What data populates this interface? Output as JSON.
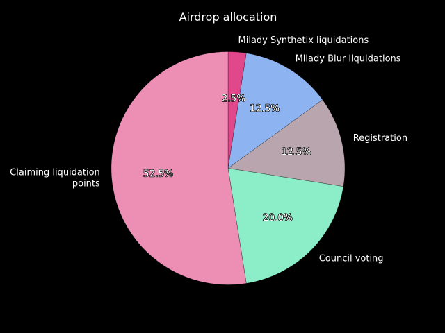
{
  "chart_data": {
    "type": "pie",
    "title": "Airdrop allocation",
    "start_angle_deg": 90,
    "direction": "clockwise",
    "legend": "none",
    "slices": [
      {
        "label": "Milady Synthetix liquidations",
        "value": 2.5,
        "pct_text": "2.5%",
        "color": "#e0488b"
      },
      {
        "label": "Milady Blur liquidations",
        "value": 12.5,
        "pct_text": "12.5%",
        "color": "#8db3f0"
      },
      {
        "label": "Registration",
        "value": 12.5,
        "pct_text": "12.5%",
        "color": "#b8a5ad"
      },
      {
        "label": "Council voting",
        "value": 20.0,
        "pct_text": "20.0%",
        "color": "#8ceec8"
      },
      {
        "label": "Claiming liquidation points",
        "value": 52.5,
        "pct_text": "52.5%",
        "color": "#ed8fb5"
      }
    ]
  }
}
